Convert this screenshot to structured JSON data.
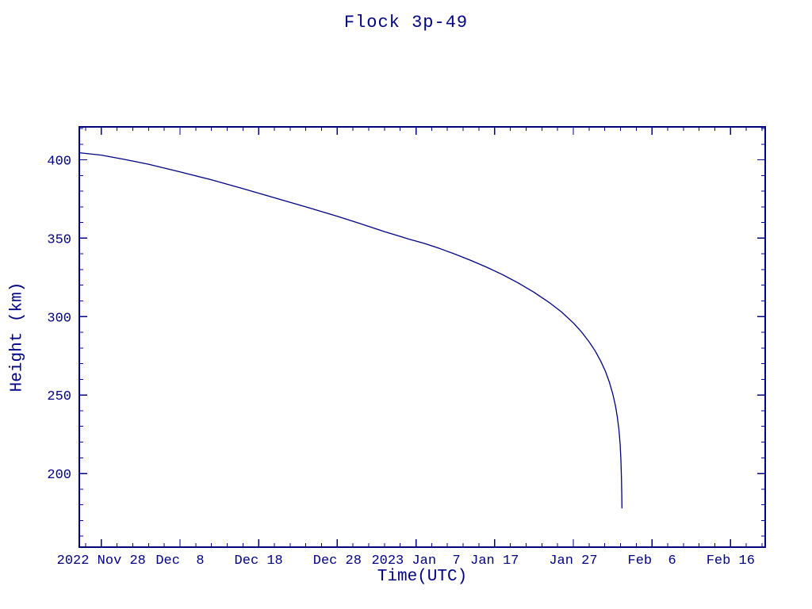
{
  "page": {
    "background_color": "#ffffff",
    "foreground_color": "#000080"
  },
  "chart_data": {
    "type": "line",
    "title": "Flock 3p-49",
    "xlabel": "Time(UTC)",
    "ylabel": "Height (km)",
    "x_unit": "days since first x tick (2022 Nov 28, UTC)",
    "xlim": [
      -2.8,
      84.4
    ],
    "ylim": [
      153,
      421
    ],
    "grid": false,
    "legend_position": "none",
    "axis_color": "#000080",
    "line_color": "#000080",
    "x_minor_step": 2,
    "y_minor_step": 10,
    "x_ticks": [
      {
        "x": 0,
        "label": "2022 Nov 28"
      },
      {
        "x": 10,
        "label": "Dec  8"
      },
      {
        "x": 20,
        "label": "Dec 18"
      },
      {
        "x": 30,
        "label": "Dec 28"
      },
      {
        "x": 40,
        "label": "2023 Jan  7"
      },
      {
        "x": 50,
        "label": "Jan 17"
      },
      {
        "x": 60,
        "label": "Jan 27"
      },
      {
        "x": 70,
        "label": "Feb  6"
      },
      {
        "x": 80,
        "label": "Feb 16"
      }
    ],
    "y_ticks": [
      200,
      250,
      300,
      350,
      400
    ],
    "series": [
      {
        "name": "Flock 3p-49 orbital height",
        "points": [
          [
            -2.8,
            404.5
          ],
          [
            0,
            403
          ],
          [
            3,
            400.2
          ],
          [
            6,
            397.2
          ],
          [
            10,
            392.3
          ],
          [
            14,
            387.2
          ],
          [
            18,
            381.6
          ],
          [
            22,
            375.8
          ],
          [
            26,
            370.0
          ],
          [
            30,
            364.0
          ],
          [
            33,
            359.2
          ],
          [
            36,
            354.2
          ],
          [
            39,
            349.6
          ],
          [
            41,
            346.8
          ],
          [
            43,
            343.5
          ],
          [
            45,
            339.8
          ],
          [
            47,
            335.8
          ],
          [
            49,
            331.5
          ],
          [
            51,
            326.8
          ],
          [
            53,
            321.5
          ],
          [
            55,
            315.5
          ],
          [
            57,
            308.8
          ],
          [
            58.5,
            303.0
          ],
          [
            60,
            296.0
          ],
          [
            61,
            290.5
          ],
          [
            62,
            284.0
          ],
          [
            62.8,
            278.0
          ],
          [
            63.5,
            271.5
          ],
          [
            64.1,
            265.0
          ],
          [
            64.6,
            258.0
          ],
          [
            65.0,
            251.0
          ],
          [
            65.35,
            243.5
          ],
          [
            65.6,
            236.0
          ],
          [
            65.8,
            228.0
          ],
          [
            65.95,
            219.0
          ],
          [
            66.05,
            209.0
          ],
          [
            66.12,
            197.0
          ],
          [
            66.16,
            186.0
          ],
          [
            66.18,
            178.0
          ]
        ]
      }
    ]
  }
}
